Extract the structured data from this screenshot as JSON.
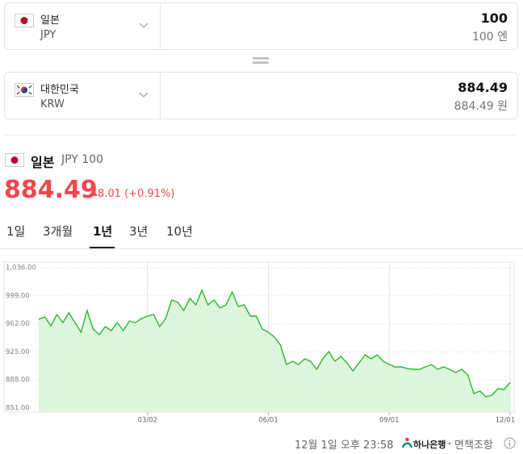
{
  "converter": {
    "from": {
      "name": "일본",
      "code": "JPY",
      "amount": "100",
      "amount_text": "100 엔"
    },
    "to": {
      "name": "대한민국",
      "code": "KRW",
      "amount": "884.49",
      "amount_text": "884.49 원"
    }
  },
  "summary": {
    "name": "일본",
    "unit": "JPY 100",
    "price": "884.49",
    "change": "8.01 (+0.91%)"
  },
  "tabs": {
    "items": [
      "1일",
      "3개월",
      "1년",
      "3년",
      "10년"
    ],
    "selected": 2
  },
  "chart_data": {
    "type": "line",
    "color": "#2db82d",
    "fill": "#ddf4dd",
    "grid": true,
    "categories": [
      null,
      null,
      null,
      null,
      null,
      null,
      null,
      null,
      null,
      null,
      null,
      null,
      null,
      null,
      null,
      null,
      null,
      null,
      "03/02",
      null,
      null,
      null,
      null,
      null,
      null,
      null,
      null,
      null,
      null,
      null,
      null,
      null,
      null,
      null,
      null,
      null,
      null,
      null,
      "06/01",
      null,
      null,
      null,
      null,
      null,
      null,
      null,
      null,
      null,
      null,
      null,
      null,
      null,
      null,
      null,
      null,
      null,
      null,
      null,
      "09/01",
      null,
      null,
      null,
      null,
      null,
      null,
      null,
      null,
      null,
      null,
      null,
      null,
      null,
      null,
      null,
      null,
      null,
      null,
      null,
      "12/01"
    ],
    "values": [
      968.0,
      971.2,
      959.5,
      974.3,
      963.7,
      976.5,
      963.7,
      950.9,
      979.7,
      955.2,
      947.8,
      958.4,
      953.1,
      963.7,
      953.1,
      965.8,
      963.7,
      969.0,
      972.2,
      974.3,
      958.4,
      969.0,
      993.5,
      990.3,
      979.7,
      995.6,
      987.1,
      1006.2,
      987.1,
      993.5,
      982.9,
      987.1,
      1004.1,
      985.0,
      987.1,
      972.2,
      972.2,
      955.2,
      950.9,
      944.6,
      933.9,
      908.4,
      912.7,
      908.4,
      915.9,
      912.7,
      902.0,
      915.9,
      925.4,
      912.7,
      919.1,
      910.5,
      899.9,
      910.5,
      921.2,
      915.9,
      921.2,
      912.7,
      908.4,
      905.2,
      905.2,
      903.1,
      902.0,
      902.0,
      905.2,
      908.4,
      902.0,
      905.2,
      902.0,
      897.8,
      902.0,
      894.6,
      870.1,
      873.3,
      865.9,
      868.0,
      876.5,
      875.5,
      884.49
    ],
    "ylim": [
      851,
      1036
    ],
    "yticks": [
      {
        "value": 851,
        "label": "851.00"
      },
      {
        "value": 888,
        "label": "888.00"
      },
      {
        "value": 925,
        "label": "925.00"
      },
      {
        "value": 962,
        "label": "962.00"
      },
      {
        "value": 999,
        "label": "999.00"
      },
      {
        "value": 1036,
        "label": "1,036.00"
      }
    ]
  },
  "footer": {
    "time": "12월 1일 오후 23:58",
    "bank": "하나은행",
    "disclaimer": "면책조항"
  }
}
